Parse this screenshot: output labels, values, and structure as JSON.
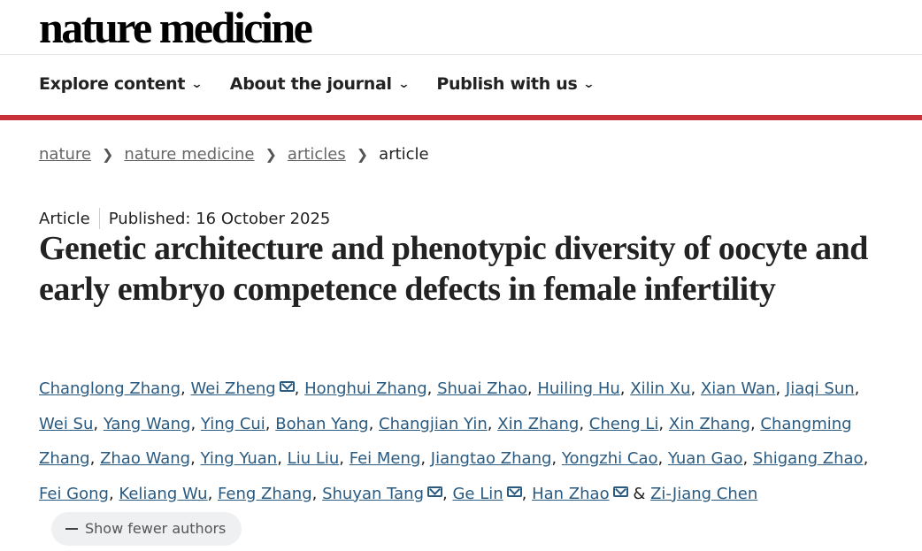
{
  "header": {
    "logo": "nature medicine"
  },
  "nav": [
    {
      "label": "Explore content"
    },
    {
      "label": "About the journal"
    },
    {
      "label": "Publish with us"
    }
  ],
  "breadcrumb": [
    {
      "label": "nature",
      "link": true
    },
    {
      "label": "nature medicine",
      "link": true
    },
    {
      "label": "articles",
      "link": true
    },
    {
      "label": "article",
      "link": false
    }
  ],
  "article": {
    "type": "Article",
    "published": "Published: 16 October 2025",
    "title": "Genetic architecture and phenotypic diversity of oocyte and early embryo competence defects in female infertility",
    "authors": [
      {
        "name": "Changlong Zhang"
      },
      {
        "name": "Wei Zheng",
        "mail": true
      },
      {
        "name": "Honghui Zhang"
      },
      {
        "name": "Shuai Zhao"
      },
      {
        "name": "Huiling Hu"
      },
      {
        "name": "Xilin Xu"
      },
      {
        "name": "Xian Wan"
      },
      {
        "name": "Jiaqi Sun"
      },
      {
        "name": "Wei Su"
      },
      {
        "name": "Yang Wang"
      },
      {
        "name": "Ying Cui"
      },
      {
        "name": "Bohan Yang"
      },
      {
        "name": "Changjian Yin"
      },
      {
        "name": "Xin Zhang"
      },
      {
        "name": "Cheng Li"
      },
      {
        "name": "Xin Zhang"
      },
      {
        "name": "Changming Zhang"
      },
      {
        "name": "Zhao Wang"
      },
      {
        "name": "Ying Yuan"
      },
      {
        "name": "Liu Liu"
      },
      {
        "name": "Fei Meng"
      },
      {
        "name": "Jiangtao Zhang"
      },
      {
        "name": "Yongzhi Cao"
      },
      {
        "name": "Yuan Gao"
      },
      {
        "name": "Shigang Zhao"
      },
      {
        "name": "Fei Gong"
      },
      {
        "name": "Keliang Wu"
      },
      {
        "name": "Feng Zhang"
      },
      {
        "name": "Shuyan Tang",
        "mail": true
      },
      {
        "name": "Ge Lin",
        "mail": true
      },
      {
        "name": "Han Zhao",
        "mail": true
      },
      {
        "name": "Zi-Jiang Chen"
      }
    ],
    "show_fewer_label": "Show fewer authors"
  },
  "colors": {
    "accent_red": "#c8313a",
    "link": "#2a5a80"
  }
}
